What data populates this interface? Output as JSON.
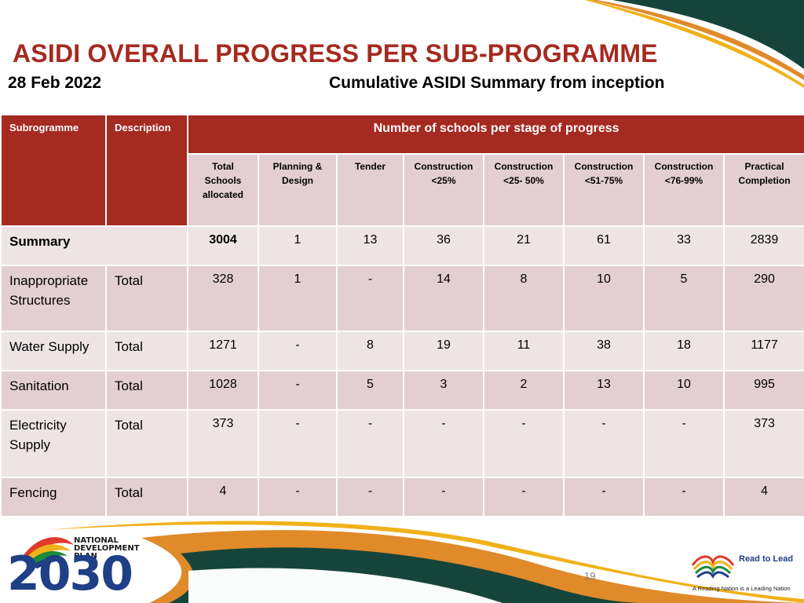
{
  "title": "ASIDI OVERALL PROGRESS PER SUB-PROGRAMME",
  "date": "28 Feb 2022",
  "summary_caption": "Cumulative ASIDI Summary from inception",
  "table": {
    "col_subprogramme": "Subrogramme",
    "col_description": "Description",
    "span_header": "Number of schools per stage of progress",
    "stage_headers": [
      [
        "Total",
        "Schools",
        "allocated"
      ],
      [
        "Planning &",
        "Design"
      ],
      [
        "Tender"
      ],
      [
        "Construction",
        "<25%"
      ],
      [
        "Construction",
        "<25- 50%"
      ],
      [
        "Construction",
        "<51-75%"
      ],
      [
        "Construction",
        "<76-99%"
      ],
      [
        "Practical",
        "Completion"
      ]
    ],
    "summary_row": {
      "label": "Summary",
      "values": [
        "3004",
        "1",
        "13",
        "36",
        "21",
        "61",
        "33",
        "2839"
      ]
    },
    "rows": [
      {
        "subprogramme": "Inappropriate Structures",
        "description": "Total",
        "values": [
          "328",
          "1",
          "-",
          "14",
          "8",
          "10",
          "5",
          "290"
        ]
      },
      {
        "subprogramme": "Water Supply",
        "description": "Total",
        "values": [
          "1271",
          "-",
          "8",
          "19",
          "11",
          "38",
          "18",
          "1177"
        ]
      },
      {
        "subprogramme": "Sanitation",
        "description": "Total",
        "values": [
          "1028",
          "-",
          "5",
          "3",
          "2",
          "13",
          "10",
          "995"
        ]
      },
      {
        "subprogramme": "Electricity Supply",
        "description": "Total",
        "values": [
          "373",
          "-",
          "-",
          "-",
          "-",
          "-",
          "-",
          "373"
        ]
      },
      {
        "subprogramme": "Fencing",
        "description": "Total",
        "values": [
          "4",
          "-",
          "-",
          "-",
          "-",
          "-",
          "-",
          "4"
        ]
      }
    ]
  },
  "footer": {
    "page_number": "19",
    "ndp_logo": {
      "lines": [
        "NATIONAL",
        "DEVELOPMENT",
        "PLAN"
      ],
      "number": "2030"
    },
    "read_logo": {
      "title": "Read to Lead",
      "tagline": "A Reading Nation is a Leading Nation"
    }
  },
  "colors": {
    "accent_red": "#a52a1f",
    "row_dark": "#e3cfd1",
    "row_light": "#efe4e5",
    "deco_green": "#17443a",
    "deco_orange": "#e08a2a",
    "deco_gold": "#f0b21a",
    "ndp_blue": "#1f3f86"
  }
}
